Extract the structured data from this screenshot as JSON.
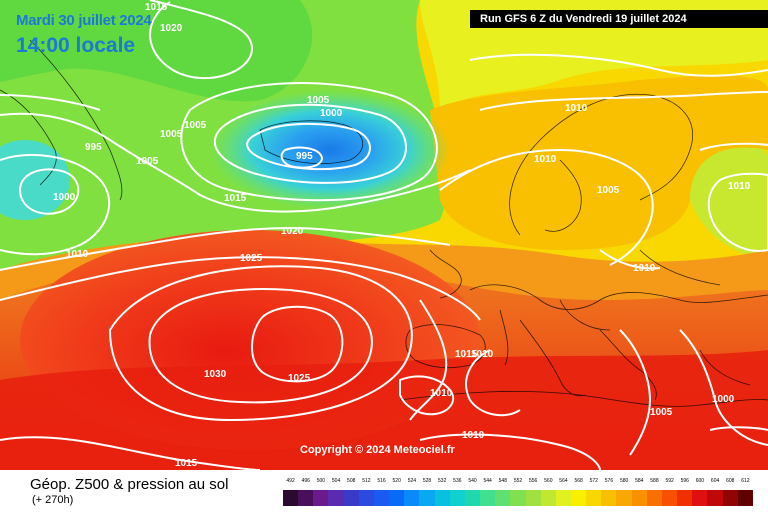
{
  "header": {
    "date_title": "Mardi 30 juillet 2024",
    "time_title": "14:00 locale",
    "run_banner": "Run GFS 6 Z du Vendredi 19 juillet 2024"
  },
  "copyright": "Copyright © 2024 Meteociel.fr",
  "legend": {
    "title": "Géop. Z500 & pression au sol",
    "subtitle": "(+ 270h)",
    "scale_values": [
      "492",
      "496",
      "500",
      "504",
      "508",
      "512",
      "516",
      "520",
      "524",
      "528",
      "532",
      "536",
      "540",
      "544",
      "548",
      "552",
      "556",
      "560",
      "564",
      "568",
      "572",
      "576",
      "580",
      "584",
      "588",
      "592",
      "596",
      "600",
      "604",
      "608",
      "612"
    ],
    "scale_colors": [
      "#2a0a2e",
      "#4a0f5a",
      "#6a1a8a",
      "#5a2ab0",
      "#3a3ac8",
      "#2a4ae0",
      "#1a5af0",
      "#0a6af8",
      "#0a8af8",
      "#0aa8f0",
      "#0ac0e0",
      "#10d0d0",
      "#20d8b0",
      "#40e090",
      "#60e070",
      "#80e050",
      "#a0e040",
      "#c0e830",
      "#e0f020",
      "#f8f000",
      "#f8d800",
      "#f8c000",
      "#f8a800",
      "#f89000",
      "#f87000",
      "#f85000",
      "#f03000",
      "#e01010",
      "#c00808",
      "#900404",
      "#600000"
    ]
  },
  "pressure_labels": [
    {
      "text": "1020",
      "ref": "north-atlantic-high"
    },
    {
      "text": "1015",
      "ref": "greenland-north"
    },
    {
      "text": "1005",
      "ref": "iceland-low-outer"
    },
    {
      "text": "1000",
      "ref": "iceland-low-middle"
    },
    {
      "text": "995",
      "ref": "iceland-low-center"
    },
    {
      "text": "1005",
      "ref": "greenland-south-a"
    },
    {
      "text": "1005",
      "ref": "greenland-south-b"
    },
    {
      "text": "1005",
      "ref": "labrador-sea"
    },
    {
      "text": "995",
      "ref": "labrador-low"
    },
    {
      "text": "1000",
      "ref": "labrador-low-outer"
    },
    {
      "text": "1010",
      "ref": "atlantic-mid"
    },
    {
      "text": "1015",
      "ref": "atlantic-south"
    },
    {
      "text": "1020",
      "ref": "azores-outer"
    },
    {
      "text": "1025",
      "ref": "azores-inner"
    },
    {
      "text": "1030",
      "ref": "azores-center"
    },
    {
      "text": "1025",
      "ref": "south-west"
    },
    {
      "text": "1015",
      "ref": "scandinavia-west"
    },
    {
      "text": "1010",
      "ref": "scandinavia"
    },
    {
      "text": "1010",
      "ref": "baltic"
    },
    {
      "text": "1005",
      "ref": "russia-west"
    },
    {
      "text": "1010",
      "ref": "central-europe"
    },
    {
      "text": "1010",
      "ref": "iberia-east"
    },
    {
      "text": "1015",
      "ref": "iberia-east-b"
    },
    {
      "text": "1010",
      "ref": "iberia-low"
    },
    {
      "text": "1010",
      "ref": "north-africa"
    },
    {
      "text": "1010",
      "ref": "balkans"
    },
    {
      "text": "1005",
      "ref": "turkey"
    },
    {
      "text": "1000",
      "ref": "middle-east"
    }
  ],
  "colors": {
    "contour": "#ffffff",
    "border": "#000000",
    "title_blue": "#1a7bd6"
  }
}
